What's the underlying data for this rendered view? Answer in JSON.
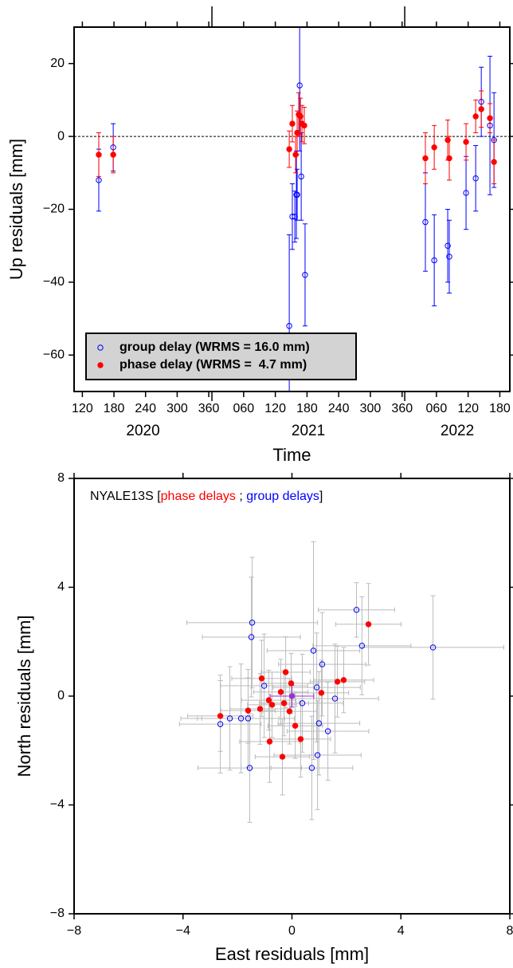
{
  "chart_data": [
    {
      "type": "scatter",
      "y_label": "Up residuals [mm]",
      "x_label": "Time",
      "xlim": [
        2020.285,
        2022.545
      ],
      "ylim": [
        -70,
        30
      ],
      "xticks": [
        {
          "value": 2020.3279,
          "label": "120"
        },
        {
          "value": 2020.4918,
          "label": "180"
        },
        {
          "value": 2020.6557,
          "label": "240"
        },
        {
          "value": 2020.8197,
          "label": "300"
        },
        {
          "value": 2020.9836,
          "label": "360"
        },
        {
          "value": 2021.1644,
          "label": "060"
        },
        {
          "value": 2021.3288,
          "label": "120"
        },
        {
          "value": 2021.4932,
          "label": "180"
        },
        {
          "value": 2021.6575,
          "label": "240"
        },
        {
          "value": 2021.8219,
          "label": "300"
        },
        {
          "value": 2021.9863,
          "label": "360"
        },
        {
          "value": 2022.1644,
          "label": "060"
        },
        {
          "value": 2022.3288,
          "label": "120"
        },
        {
          "value": 2022.4932,
          "label": "180"
        }
      ],
      "year_labels": [
        "2020",
        "2021",
        "2022"
      ],
      "yticks": [
        {
          "value": -60,
          "label": "−60"
        },
        {
          "value": -40,
          "label": "−40"
        },
        {
          "value": -20,
          "label": "−20"
        },
        0,
        20
      ],
      "hline": 0,
      "legend": "bottom-left",
      "series": [
        {
          "name": "group delay (WRMS = 16.0 mm)",
          "color": "#0000ff",
          "marker": "open",
          "x": [
            2020.413,
            2020.488,
            2021.401,
            2021.417,
            2021.43,
            2021.438,
            2021.442,
            2021.455,
            2021.463,
            2021.483,
            2022.107,
            2022.153,
            2022.223,
            2022.231,
            2022.318,
            2022.368,
            2022.397,
            2022.442,
            2022.463
          ],
          "values": [
            -12,
            -3,
            -52,
            -22,
            -22,
            -16,
            -16,
            14,
            -11,
            -38,
            -23.5,
            -34,
            -30,
            -33,
            -15.5,
            -11.5,
            9.5,
            3,
            -1
          ],
          "yerr": [
            8.5,
            6.5,
            25,
            9,
            7,
            12,
            7,
            18,
            12,
            14,
            13.5,
            12.5,
            10,
            10,
            10,
            9,
            9.5,
            19,
            13
          ]
        },
        {
          "name": "phase delay (WRMS =  4.7 mm)",
          "color": "#ff0000",
          "marker": "filled",
          "x": [
            2020.413,
            2020.488,
            2021.401,
            2021.417,
            2021.434,
            2021.442,
            2021.45,
            2021.459,
            2021.467,
            2021.479,
            2022.107,
            2022.153,
            2022.223,
            2022.231,
            2022.318,
            2022.368,
            2022.397,
            2022.442,
            2022.463
          ],
          "values": [
            -5,
            -5,
            -3.5,
            3.5,
            -5,
            1,
            6,
            5.5,
            3.5,
            3,
            -6,
            -3,
            -1,
            -6,
            -1.5,
            5.5,
            7.5,
            5,
            -7
          ],
          "yerr": [
            6,
            5,
            5,
            5,
            5,
            6,
            6,
            5,
            5,
            5,
            7,
            6,
            5.5,
            6,
            5,
            4.5,
            5,
            4,
            6
          ]
        }
      ]
    },
    {
      "type": "scatter",
      "title_parts": [
        "NYALE13S [",
        " ; ",
        "]"
      ],
      "x_label": "East residuals [mm]",
      "y_label": "North residuals [mm]",
      "xlim": [
        -8,
        8
      ],
      "ylim": [
        -8,
        8
      ],
      "xticks": [
        {
          "value": -8,
          "label": "−8"
        },
        {
          "value": -4,
          "label": "−4"
        },
        0,
        4,
        8
      ],
      "yticks": [
        {
          "value": -8,
          "label": "−8"
        },
        {
          "value": -4,
          "label": "−4"
        },
        0,
        4,
        8
      ],
      "error_color": "#bbbbbb",
      "series": [
        {
          "name": "phase delays",
          "color": "#ff0000",
          "marker": "filled",
          "x": [
            -2.63,
            -1.61,
            -1.11,
            -0.85,
            -0.73,
            -0.82,
            -0.35,
            -0.41,
            -0.23,
            -0.03,
            -0.29,
            -1.17,
            -0.09,
            0.12,
            0.32,
            1.08,
            1.67,
            1.9,
            2.81
          ],
          "values": [
            -0.73,
            -0.53,
            0.65,
            -0.15,
            -0.32,
            -1.67,
            -2.23,
            0.15,
            0.88,
            0.47,
            -0.26,
            -0.47,
            -0.56,
            -1.09,
            -1.58,
            0.12,
            0.53,
            0.59,
            2.64
          ],
          "xerr": [
            1.2,
            1.0,
            1.1,
            1.0,
            0.9,
            1.1,
            1.0,
            1.0,
            0.9,
            1.0,
            0.9,
            1.1,
            1.0,
            1.0,
            1.1,
            1.0,
            1.0,
            1.1,
            1.2
          ],
          "yerr": [
            1.3,
            1.2,
            1.4,
            1.1,
            1.2,
            1.5,
            1.4,
            1.2,
            1.3,
            1.1,
            1.2,
            1.3,
            1.2,
            1.2,
            1.4,
            1.2,
            1.3,
            1.2,
            1.5
          ]
        },
        {
          "name": "group delays",
          "color": "#0000ff",
          "marker": "open",
          "x": [
            -2.63,
            -2.28,
            -1.87,
            -1.61,
            -1.55,
            -1.46,
            -1.49,
            -1.02,
            0.38,
            0.79,
            0.91,
            0.99,
            0.94,
            1.11,
            1.32,
            1.58,
            0.73,
            2.37,
            2.57,
            5.18
          ],
          "values": [
            -1.03,
            -0.82,
            -0.82,
            -0.82,
            -2.64,
            2.7,
            2.17,
            0.38,
            -0.26,
            1.67,
            0.32,
            -1.0,
            -2.17,
            1.17,
            -1.29,
            -0.09,
            -2.64,
            3.17,
            1.85,
            1.79
          ],
          "xerr": [
            1.5,
            1.8,
            1.6,
            1.7,
            1.9,
            2.4,
            1.8,
            1.6,
            1.5,
            1.7,
            1.6,
            1.5,
            1.6,
            1.6,
            1.5,
            1.6,
            1.5,
            1.4,
            1.8,
            2.6
          ],
          "yerr": [
            1.8,
            1.9,
            2.0,
            1.8,
            2.0,
            2.4,
            2.2,
            1.9,
            1.8,
            4.0,
            2.0,
            1.9,
            2.0,
            1.9,
            1.8,
            2.0,
            1.9,
            1.0,
            1.8,
            1.9
          ]
        },
        {
          "color": "#9933cc",
          "marker": "filled",
          "x": [
            0
          ],
          "values": [
            0
          ],
          "xerr": [
            0.8
          ],
          "yerr": [
            0.4
          ]
        }
      ]
    }
  ]
}
